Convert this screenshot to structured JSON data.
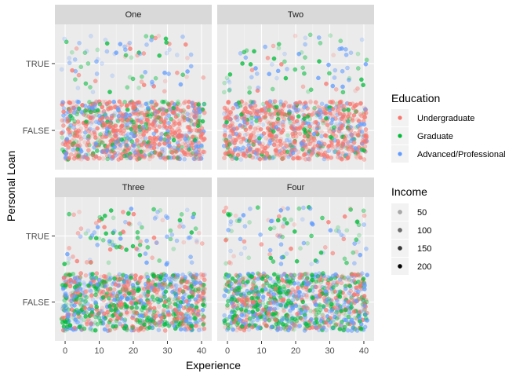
{
  "chart_data": {
    "type": "scatter",
    "facet_by": "panel",
    "panels": [
      "One",
      "Two",
      "Three",
      "Four"
    ],
    "xlabel": "Experience",
    "ylabel": "Personal Loan",
    "x_ticks": [
      0,
      10,
      20,
      30,
      40
    ],
    "xlim": [
      -3,
      43
    ],
    "y_categories": [
      "FALSE",
      "TRUE"
    ],
    "grid": true,
    "point_alpha_by": "Income",
    "legend_position": "right",
    "legend": {
      "color": {
        "title": "Education",
        "entries": [
          {
            "label": "Undergraduate",
            "color": "#F8766D"
          },
          {
            "label": "Graduate",
            "color": "#00BA38"
          },
          {
            "label": "Advanced/Professional",
            "color": "#619CFF"
          }
        ]
      },
      "alpha": {
        "title": "Income",
        "entries": [
          {
            "label": "50",
            "alpha": 0.3
          },
          {
            "label": "100",
            "alpha": 0.55
          },
          {
            "label": "150",
            "alpha": 0.78
          },
          {
            "label": "200",
            "alpha": 1.0
          }
        ]
      }
    },
    "series_density": {
      "One": {
        "TRUE": {
          "Undergraduate": 22,
          "Graduate": 26,
          "Advanced/Professional": 40
        },
        "FALSE": {
          "Undergraduate": 560,
          "Graduate": 170,
          "Advanced/Professional": 230
        }
      },
      "Two": {
        "TRUE": {
          "Undergraduate": 12,
          "Graduate": 38,
          "Advanced/Professional": 36
        },
        "FALSE": {
          "Undergraduate": 560,
          "Graduate": 110,
          "Advanced/Professional": 190
        }
      },
      "Three": {
        "TRUE": {
          "Undergraduate": 30,
          "Graduate": 46,
          "Advanced/Professional": 40
        },
        "FALSE": {
          "Undergraduate": 360,
          "Graduate": 330,
          "Advanced/Professional": 300
        }
      },
      "Four": {
        "TRUE": {
          "Undergraduate": 26,
          "Graduate": 44,
          "Advanced/Professional": 42
        },
        "FALSE": {
          "Undergraduate": 300,
          "Graduate": 340,
          "Advanced/Professional": 300
        }
      }
    }
  }
}
